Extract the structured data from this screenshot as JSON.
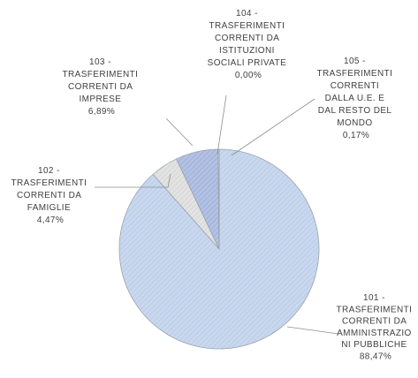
{
  "chart_data": {
    "type": "pie",
    "slices": [
      {
        "code": "101",
        "label": "101 - TRASFERIMENTI CORRENTI DA AMMINISTRAZIONI PUBBLICHE",
        "value": 88.47,
        "value_text": "88,47%",
        "color": "#c6d6ec"
      },
      {
        "code": "102",
        "label": "102 - TRASFERIMENTI CORRENTI DA FAMIGLIE",
        "value": 4.47,
        "value_text": "4,47%",
        "color": "#d9d9d9"
      },
      {
        "code": "103",
        "label": "103 - TRASFERIMENTI CORRENTI DA IMPRESE",
        "value": 6.89,
        "value_text": "6,89%",
        "color": "#a6b8de"
      },
      {
        "code": "104",
        "label": "104 - TRASFERIMENTI CORRENTI DA ISTITUZIONI SOCIALI PRIVATE",
        "value": 0.0,
        "value_text": "0,00%",
        "color": "#ffffff"
      },
      {
        "code": "105",
        "label": "105 - TRASFERIMENTI CORRENTI DALLA U.E. E DAL RESTO DEL MONDO",
        "value": 0.17,
        "value_text": "0,17%",
        "color": "#e8e8e8"
      }
    ],
    "label_lines": {
      "101": [
        "101 -",
        "TRASFERIMENTI",
        "CORRENTI DA",
        "AMMINISTRAZIO",
        "NI PUBBLICHE",
        "88,47%"
      ],
      "102": [
        "102 -",
        "TRASFERIMENTI",
        "CORRENTI DA",
        "FAMIGLIE",
        "4,47%"
      ],
      "103": [
        "103 -",
        "TRASFERIMENTI",
        "CORRENTI DA",
        "IMPRESE",
        "6,89%"
      ],
      "104": [
        "104 -",
        "TRASFERIMENTI",
        "CORRENTI DA",
        "ISTITUZIONI",
        "SOCIALI PRIVATE",
        "0,00%"
      ],
      "105": [
        "105 -",
        "TRASFERIMENTI",
        "CORRENTI",
        "DALLA U.E. E",
        "DAL RESTO DEL",
        "MONDO",
        "0,17%"
      ]
    },
    "start_angle_deg": 0,
    "direction": "clockwise",
    "legend": "none"
  }
}
